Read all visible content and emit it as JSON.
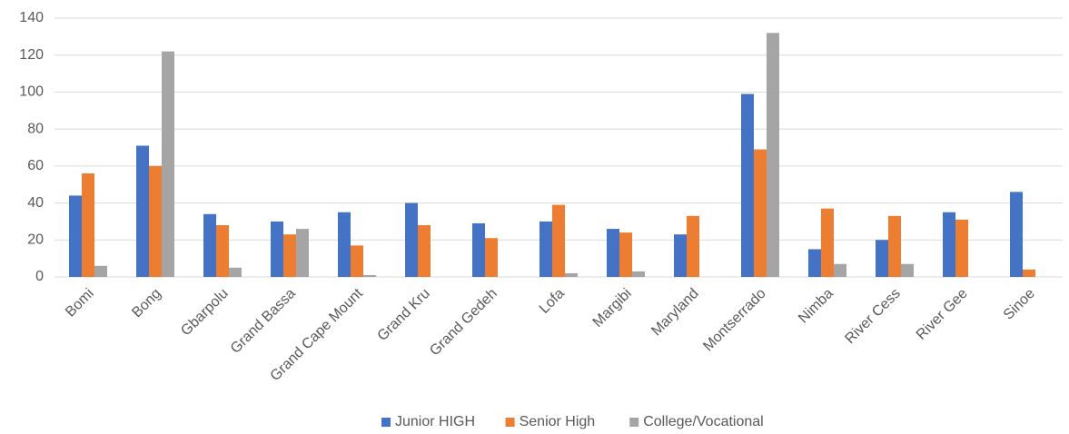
{
  "chart_data": {
    "type": "bar",
    "categories": [
      "Bomi",
      "Bong",
      "Gbarpolu",
      "Grand Bassa",
      "Grand Cape Mount",
      "Grand Kru",
      "Grand Gedeh",
      "Lofa",
      "Margibi",
      "Maryland",
      "Montserrado",
      "Nimba",
      "River Cess",
      "River Gee",
      "Sinoe"
    ],
    "series": [
      {
        "name": "Junior HIGH",
        "color": "#4472c4",
        "values": [
          44,
          71,
          34,
          30,
          35,
          40,
          29,
          30,
          26,
          23,
          99,
          15,
          20,
          35,
          46
        ]
      },
      {
        "name": "Senior High",
        "color": "#ed7d31",
        "values": [
          56,
          60,
          28,
          23,
          17,
          28,
          21,
          39,
          24,
          33,
          69,
          37,
          33,
          31,
          4
        ]
      },
      {
        "name": "College/Vocational",
        "color": "#a5a5a5",
        "values": [
          6,
          122,
          5,
          26,
          1,
          0,
          0,
          2,
          3,
          0,
          132,
          7,
          7,
          0,
          0
        ]
      }
    ],
    "ylim": [
      0,
      140
    ],
    "yticks": [
      0,
      20,
      40,
      60,
      80,
      100,
      120,
      140
    ],
    "grid": true,
    "legend": "bottom"
  }
}
